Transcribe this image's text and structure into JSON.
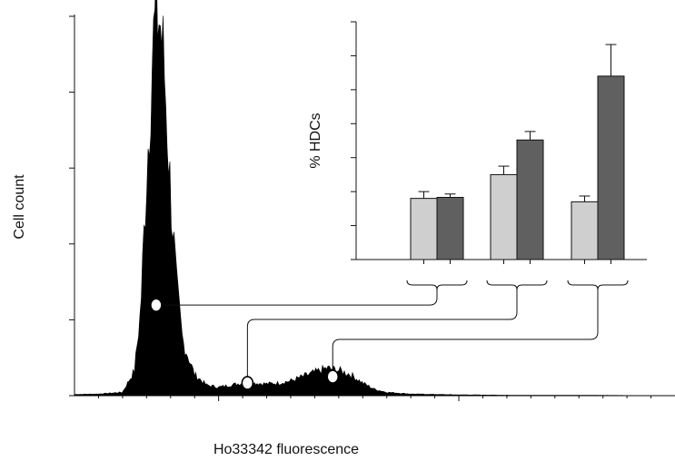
{
  "chart_data": [
    {
      "type": "area",
      "xlabel": "Ho33342 fluorescence",
      "ylabel": "Cell count",
      "xlim": [
        80,
        580
      ],
      "ylim": [
        0,
        900
      ],
      "x_ticks": [
        "200",
        "400"
      ],
      "y_ticks": [
        "0",
        "180",
        "360",
        "540",
        "720",
        "900"
      ],
      "series": [
        {
          "x": [
            80,
            100,
            120,
            130,
            135,
            140,
            145,
            148,
            150,
            152,
            155,
            160,
            165,
            170,
            180,
            190,
            200,
            210,
            220,
            230,
            240,
            250,
            260,
            270,
            280,
            290,
            300,
            310,
            320,
            330,
            340,
            360,
            380,
            400,
            450,
            500,
            580
          ],
          "values": [
            3,
            4,
            8,
            60,
            200,
            520,
            820,
            900,
            905,
            870,
            760,
            480,
            260,
            130,
            50,
            25,
            20,
            25,
            30,
            30,
            28,
            30,
            35,
            45,
            55,
            65,
            60,
            50,
            30,
            15,
            8,
            4,
            3,
            2,
            1,
            1,
            0
          ]
        }
      ],
      "markers": [
        {
          "x": 148,
          "y": 215,
          "fill": "white-on-black"
        },
        {
          "x": 224,
          "y": 30,
          "fill": "open"
        },
        {
          "x": 295,
          "y": 45,
          "fill": "open"
        }
      ]
    },
    {
      "type": "bar",
      "ylabel": "% HDCs",
      "ylim": [
        0,
        70
      ],
      "y_ticks": [
        "0",
        "10",
        "20",
        "30",
        "40",
        "50",
        "60",
        "70"
      ],
      "group_labels": [
        "–",
        "+"
      ],
      "groups": [
        {
          "values": [
            18,
            18.3
          ],
          "errors": [
            2,
            1
          ]
        },
        {
          "values": [
            25,
            35.2
          ],
          "errors": [
            2.5,
            2.5
          ]
        },
        {
          "values": [
            17,
            54
          ],
          "errors": [
            1.7,
            9.3
          ]
        }
      ],
      "colors": {
        "minus": "#cfcfcf",
        "plus": "#606060"
      }
    }
  ]
}
